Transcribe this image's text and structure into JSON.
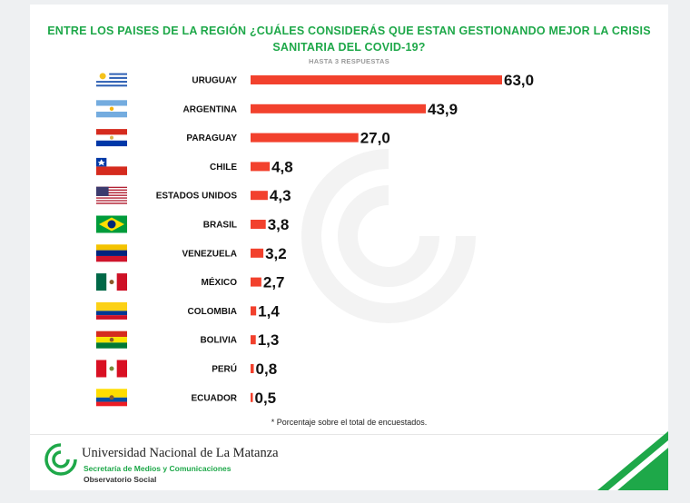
{
  "header": {
    "title_line1": "ENTRE LOS PAISES DE LA REGIÓN ¿CUÁLES CONSIDERÁS QUE ESTAN GESTIONANDO MEJOR LA CRISIS",
    "title_line2": "SANITARIA DEL COVID-19?",
    "subtitle": "HASTA 3 RESPUESTAS"
  },
  "chart_data": {
    "type": "bar",
    "orientation": "horizontal",
    "title": "ENTRE LOS PAISES DE LA REGIÓN ¿CUÁLES CONSIDERÁS QUE ESTAN GESTIONANDO MEJOR LA CRISIS SANITARIA DEL COVID-19?",
    "subtitle": "HASTA 3 RESPUESTAS",
    "categories": [
      "URUGUAY",
      "ARGENTINA",
      "PARAGUAY",
      "CHILE",
      "ESTADOS UNIDOS",
      "BRASIL",
      "VENEZUELA",
      "MÉXICO",
      "COLOMBIA",
      "BOLIVIA",
      "PERÚ",
      "ECUADOR"
    ],
    "values": [
      63.0,
      43.9,
      27.0,
      4.8,
      4.3,
      3.8,
      3.2,
      2.7,
      1.4,
      1.3,
      0.8,
      0.5
    ],
    "value_labels": [
      "63,0",
      "43,9",
      "27,0",
      "4,8",
      "4,3",
      "3,8",
      "3,2",
      "2,7",
      "1,4",
      "1,3",
      "0,8",
      "0,5"
    ],
    "flags": [
      "uruguay-flag-icon",
      "argentina-flag-icon",
      "paraguay-flag-icon",
      "chile-flag-icon",
      "usa-flag-icon",
      "brazil-flag-icon",
      "venezuela-flag-icon",
      "mexico-flag-icon",
      "colombia-flag-icon",
      "bolivia-flag-icon",
      "peru-flag-icon",
      "ecuador-flag-icon"
    ],
    "xlim": [
      0,
      63
    ],
    "grid": false,
    "bar_color": "#f2412d"
  },
  "footnote": "* Porcentaje sobre el total de encuestados.",
  "footer": {
    "university": "Universidad Nacional de La Matanza",
    "secretaria": "Secretaría de Medios y Comunicaciones",
    "observatorio": "Observatorio Social"
  },
  "colors": {
    "accent_green": "#1ea849",
    "bar_red": "#f2412d"
  }
}
